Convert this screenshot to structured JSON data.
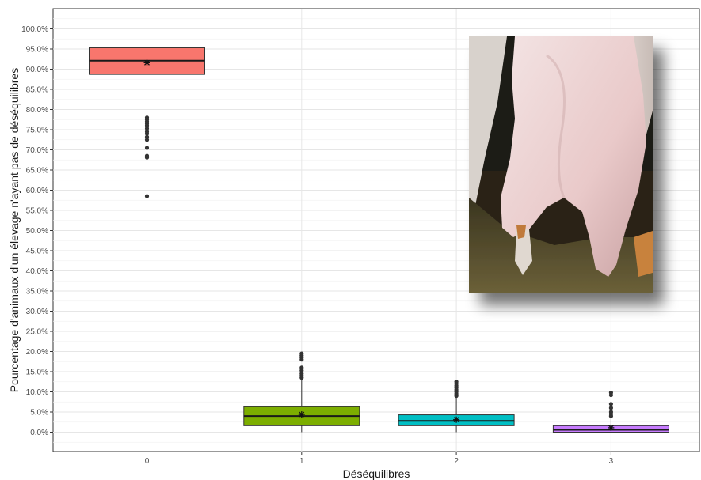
{
  "chart_data": {
    "type": "box",
    "xlabel": "Déséquilibres",
    "ylabel": "Pourcentage d'animaux d'un élevage n'ayant pas de déséquilibres",
    "categories": [
      "0",
      "1",
      "2",
      "3"
    ],
    "ylim": [
      -5,
      105
    ],
    "y_ticks": [
      "0.0%",
      "5.0%",
      "10.0%",
      "15.0%",
      "20.0%",
      "25.0%",
      "30.0%",
      "35.0%",
      "40.0%",
      "45.0%",
      "50.0%",
      "55.0%",
      "60.0%",
      "65.0%",
      "70.0%",
      "75.0%",
      "80.0%",
      "85.0%",
      "90.0%",
      "95.0%",
      "100.0%"
    ],
    "grid": true,
    "boxes": [
      {
        "category": "0",
        "color": "#f8766d",
        "q1": 88.7,
        "median": 92.1,
        "q3": 95.3,
        "whisker_low": 78.8,
        "whisker_high": 100.0,
        "mean": 91.6,
        "outliers": [
          78.0,
          77.5,
          77.0,
          76.5,
          76.0,
          75.3,
          74.5,
          74.0,
          73.2,
          72.5,
          70.5,
          68.5,
          68.1,
          58.5
        ]
      },
      {
        "category": "1",
        "color": "#7cae00",
        "q1": 1.6,
        "median": 4.0,
        "q3": 6.3,
        "whisker_low": 0.0,
        "whisker_high": 13.0,
        "mean": 4.4,
        "outliers": [
          13.5,
          14.0,
          14.5,
          15.3,
          16.0,
          18.0,
          18.5,
          19.0,
          19.5
        ]
      },
      {
        "category": "2",
        "color": "#00bfc4",
        "q1": 1.6,
        "median": 2.8,
        "q3": 4.3,
        "whisker_low": 0.0,
        "whisker_high": 8.5,
        "mean": 3.1,
        "outliers": [
          9.0,
          9.5,
          10.0,
          10.5,
          11.0,
          11.5,
          12.0,
          12.5
        ]
      },
      {
        "category": "3",
        "color": "#c77cff",
        "q1": 0.0,
        "median": 0.6,
        "q3": 1.6,
        "whisker_low": 0.0,
        "whisker_high": 3.5,
        "mean": 1.1,
        "outliers": [
          4.0,
          4.5,
          5.0,
          6.0,
          7.0,
          9.2,
          9.8
        ]
      }
    ]
  }
}
